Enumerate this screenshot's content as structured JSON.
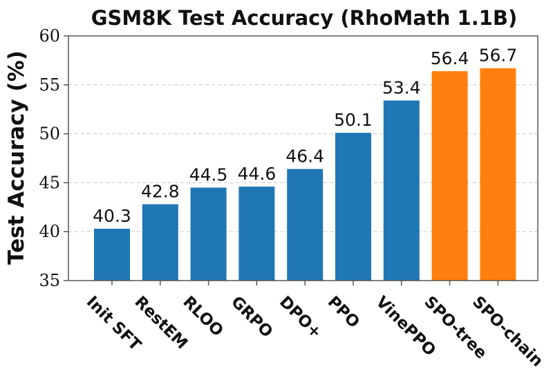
{
  "chart_data": {
    "type": "bar",
    "title": "GSM8K Test Accuracy (RhoMath 1.1B)",
    "ylabel": "Test Accuracy (%)",
    "xlabel": "",
    "categories": [
      "Init SFT",
      "RestEM",
      "RLOO",
      "GRPO",
      "DPO+",
      "PPO",
      "VinePPO",
      "SPO-tree",
      "SPO-chain"
    ],
    "values": [
      40.3,
      42.8,
      44.5,
      44.6,
      46.4,
      50.1,
      53.4,
      56.4,
      56.7
    ],
    "value_labels": [
      "40.3",
      "42.8",
      "44.5",
      "44.6",
      "46.4",
      "50.1",
      "53.4",
      "56.4",
      "56.7"
    ],
    "bar_colors": [
      "#1f77b4",
      "#1f77b4",
      "#1f77b4",
      "#1f77b4",
      "#1f77b4",
      "#1f77b4",
      "#1f77b4",
      "#ff7f0e",
      "#ff7f0e"
    ],
    "ylim": [
      35,
      60
    ],
    "yticks": [
      35,
      40,
      45,
      50,
      55,
      60
    ],
    "grid": true
  }
}
